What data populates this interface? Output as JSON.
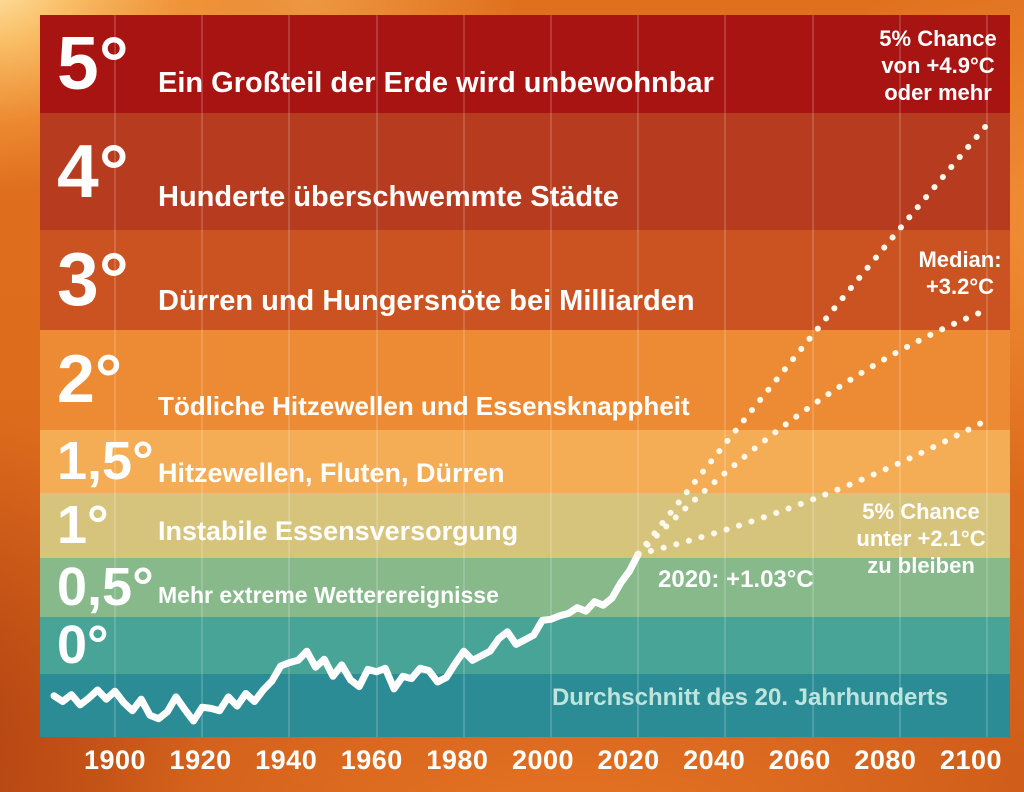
{
  "colors": {
    "background": "#dd6b1d",
    "line": "#ffffff",
    "dotted_line": "#fdf8ea",
    "gridline": "rgba(255,255,255,0.16)",
    "baseline_text": "#bfe4dd"
  },
  "chart_data": {
    "type": "line",
    "unit": "°C",
    "x_axis": {
      "tick_years": [
        1900,
        1920,
        1940,
        1960,
        1980,
        2000,
        2020,
        2040,
        2060,
        2080,
        2100
      ],
      "range": [
        1886,
        2104
      ]
    },
    "y_axis": {
      "range_temp": [
        -0.55,
        6
      ],
      "baseline": "Durchschnitt des 20. Jahrhunderts"
    },
    "bands": [
      {
        "key": "5",
        "label": "5°",
        "impact": "Ein Großteil der Erde wird unbewohnbar",
        "temp_from": 5,
        "temp_to": 6,
        "color": "#a81411"
      },
      {
        "key": "4",
        "label": "4°",
        "impact": "Hunderte überschwemmte Städte",
        "temp_from": 4,
        "temp_to": 5,
        "color": "#b73b1e"
      },
      {
        "key": "3",
        "label": "3°",
        "impact": "Dürren und Hungersnöte bei Milliarden",
        "temp_from": 3,
        "temp_to": 4,
        "color": "#cb5321"
      },
      {
        "key": "2",
        "label": "2°",
        "impact": "Tödliche Hitzewellen und Essensknappheit",
        "temp_from": 2,
        "temp_to": 3,
        "color": "#ec8b33"
      },
      {
        "key": "1-5",
        "label": "1,5°",
        "impact": "Hitzewellen, Fluten, Dürren",
        "temp_from": 1.5,
        "temp_to": 2,
        "color": "#f4ac55"
      },
      {
        "key": "1",
        "label": "1°",
        "impact": "Instabile Essensversorgung",
        "temp_from": 1,
        "temp_to": 1.5,
        "color": "#d7c47c"
      },
      {
        "key": "0-5",
        "label": "0,5°",
        "impact": "Mehr extreme Wetterereignisse",
        "temp_from": 0.5,
        "temp_to": 1,
        "color": "#87b98b"
      },
      {
        "key": "0",
        "label": "0°",
        "impact": "",
        "temp_from": 0,
        "temp_to": 0.5,
        "color": "#47a496"
      },
      {
        "key": "below-0",
        "label": "",
        "impact": "",
        "temp_from": -0.55,
        "temp_to": 0,
        "color": "#2b8c95"
      }
    ],
    "historical": {
      "end_label": "2020: +1.03°C",
      "points": [
        [
          1886,
          -0.19
        ],
        [
          1888,
          -0.24
        ],
        [
          1890,
          -0.18
        ],
        [
          1892,
          -0.27
        ],
        [
          1894,
          -0.21
        ],
        [
          1896,
          -0.14
        ],
        [
          1898,
          -0.22
        ],
        [
          1900,
          -0.15
        ],
        [
          1902,
          -0.25
        ],
        [
          1904,
          -0.32
        ],
        [
          1906,
          -0.22
        ],
        [
          1908,
          -0.36
        ],
        [
          1910,
          -0.39
        ],
        [
          1912,
          -0.33
        ],
        [
          1914,
          -0.2
        ],
        [
          1916,
          -0.31
        ],
        [
          1918,
          -0.41
        ],
        [
          1920,
          -0.29
        ],
        [
          1922,
          -0.3
        ],
        [
          1924,
          -0.32
        ],
        [
          1926,
          -0.2
        ],
        [
          1928,
          -0.28
        ],
        [
          1930,
          -0.17
        ],
        [
          1932,
          -0.24
        ],
        [
          1934,
          -0.14
        ],
        [
          1936,
          -0.06
        ],
        [
          1938,
          0.07
        ],
        [
          1940,
          0.1
        ],
        [
          1942,
          0.12
        ],
        [
          1944,
          0.2
        ],
        [
          1946,
          0.06
        ],
        [
          1948,
          0.13
        ],
        [
          1950,
          -0.02
        ],
        [
          1952,
          0.08
        ],
        [
          1954,
          -0.05
        ],
        [
          1956,
          -0.11
        ],
        [
          1958,
          0.04
        ],
        [
          1960,
          0.02
        ],
        [
          1962,
          0.05
        ],
        [
          1964,
          -0.13
        ],
        [
          1966,
          -0.02
        ],
        [
          1968,
          -0.04
        ],
        [
          1970,
          0.05
        ],
        [
          1972,
          0.03
        ],
        [
          1974,
          -0.07
        ],
        [
          1976,
          -0.03
        ],
        [
          1978,
          0.09
        ],
        [
          1980,
          0.2
        ],
        [
          1982,
          0.12
        ],
        [
          1984,
          0.16
        ],
        [
          1986,
          0.2
        ],
        [
          1988,
          0.31
        ],
        [
          1990,
          0.37
        ],
        [
          1992,
          0.26
        ],
        [
          1994,
          0.3
        ],
        [
          1996,
          0.34
        ],
        [
          1998,
          0.47
        ],
        [
          2000,
          0.48
        ],
        [
          2002,
          0.51
        ],
        [
          2004,
          0.53
        ],
        [
          2006,
          0.58
        ],
        [
          2008,
          0.55
        ],
        [
          2010,
          0.63
        ],
        [
          2012,
          0.6
        ],
        [
          2014,
          0.66
        ],
        [
          2016,
          0.79
        ],
        [
          2018,
          0.89
        ],
        [
          2020,
          1.03
        ]
      ]
    },
    "projections": [
      {
        "key": "upper",
        "label_lines": [
          "5% Chance",
          "von +4.9°C",
          "oder mehr"
        ],
        "end_year": 2100,
        "end_temp": 4.9,
        "via_year": 2060,
        "via_temp": 2.95
      },
      {
        "key": "median",
        "label_lines": [
          "Median:",
          "+3.2°C"
        ],
        "end_year": 2100,
        "end_temp": 3.2,
        "via_year": 2060,
        "via_temp": 2.25
      },
      {
        "key": "lower",
        "label_lines": [
          "5% Chance",
          "unter +2.1°C",
          "zu bleiben"
        ],
        "end_year": 2100,
        "end_temp": 2.1,
        "via_year": 2060,
        "via_temp": 1.45
      }
    ],
    "baseline_label": "Durchschnitt des 20. Jahrhunderts"
  }
}
